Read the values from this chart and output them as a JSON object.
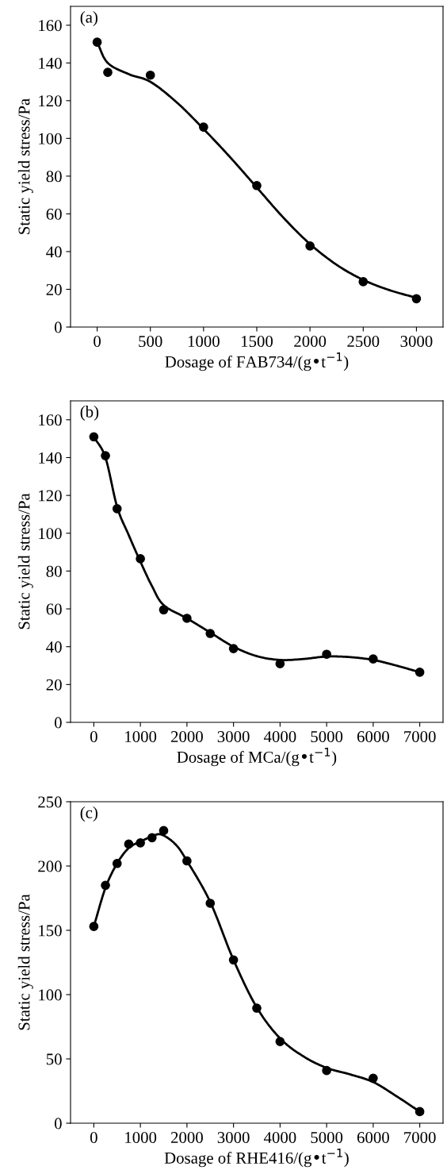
{
  "chart_data": [
    {
      "type": "scatter",
      "xlabel": "Dosage of FAB734/(g•t$^{−1}$)",
      "ylabel": "Static yield stress/Pa",
      "annotations": [
        "(a)"
      ],
      "xlim": [
        -250,
        3250
      ],
      "ylim": [
        0,
        170
      ],
      "xticks": [
        0,
        500,
        1000,
        1500,
        2000,
        2500,
        3000
      ],
      "yticks": [
        0,
        20,
        40,
        60,
        80,
        100,
        120,
        140,
        160
      ],
      "grid": false,
      "series": [
        {
          "type": "scatter",
          "color": "#000000",
          "marker": "circle",
          "x": [
            0,
            100,
            500,
            1000,
            1500,
            2000,
            2500,
            3000
          ],
          "values": [
            151,
            135,
            133.5,
            106,
            75,
            43,
            24,
            15
          ]
        },
        {
          "type": "line",
          "color": "#000000",
          "marker": "none",
          "line_style": "solid",
          "x": [
            0,
            100,
            300,
            500,
            750,
            1000,
            1250,
            1500,
            1750,
            2000,
            2250,
            2500,
            2750,
            3000
          ],
          "values": [
            151,
            140,
            134,
            130,
            119,
            105,
            90,
            74,
            58,
            44,
            33,
            25,
            19.5,
            15.5
          ]
        }
      ]
    },
    {
      "type": "scatter",
      "xlabel": "Dosage of MCa/(g•t$^{−1}$)",
      "ylabel": "Static yield stress/Pa",
      "annotations": [
        "(b)"
      ],
      "xlim": [
        -500,
        7500
      ],
      "ylim": [
        0,
        170
      ],
      "xticks": [
        0,
        1000,
        2000,
        3000,
        4000,
        5000,
        6000,
        7000
      ],
      "yticks": [
        0,
        20,
        40,
        60,
        80,
        100,
        120,
        140,
        160
      ],
      "grid": false,
      "series": [
        {
          "type": "scatter",
          "color": "#000000",
          "marker": "circle",
          "x": [
            0,
            250,
            500,
            1000,
            1500,
            2000,
            2500,
            3000,
            4000,
            5000,
            6000,
            7000
          ],
          "values": [
            151,
            141,
            113,
            86.5,
            59.5,
            55,
            47,
            39,
            31,
            36,
            33.5,
            26.5
          ]
        },
        {
          "type": "line",
          "color": "#000000",
          "marker": "none",
          "line_style": "solid",
          "x": [
            0,
            250,
            500,
            750,
            1000,
            1250,
            1500,
            2000,
            2500,
            3000,
            3500,
            4000,
            4500,
            5000,
            5500,
            6000,
            6500,
            7000
          ],
          "values": [
            151,
            140,
            114,
            99,
            85,
            72,
            62,
            55,
            47.5,
            40,
            35,
            33,
            33.5,
            34.8,
            34.5,
            33,
            30,
            26.5
          ]
        }
      ]
    },
    {
      "type": "scatter",
      "xlabel": "Dosage of RHE416/(g•t$^{−1}$)",
      "ylabel": "Static yield stress/Pa",
      "annotations": [
        "(c)"
      ],
      "xlim": [
        -500,
        7500
      ],
      "ylim": [
        0,
        250
      ],
      "xticks": [
        0,
        1000,
        2000,
        3000,
        4000,
        5000,
        6000,
        7000
      ],
      "yticks": [
        0,
        50,
        100,
        150,
        200,
        250
      ],
      "grid": false,
      "series": [
        {
          "type": "scatter",
          "color": "#000000",
          "marker": "circle",
          "x": [
            0,
            250,
            500,
            750,
            1000,
            1250,
            1500,
            2000,
            2500,
            3000,
            3500,
            4000,
            5000,
            6000,
            7000
          ],
          "values": [
            153,
            185,
            202,
            217,
            218,
            222,
            227.5,
            204,
            171,
            127,
            89.5,
            63.5,
            41,
            35,
            9
          ]
        },
        {
          "type": "line",
          "color": "#000000",
          "marker": "none",
          "line_style": "solid",
          "x": [
            0,
            250,
            500,
            750,
            1000,
            1250,
            1450,
            1750,
            2000,
            2500,
            3000,
            3500,
            4000,
            4500,
            5000,
            5500,
            6000,
            6500,
            7000
          ],
          "values": [
            153,
            183,
            202,
            214,
            219,
            223,
            224.5,
            217,
            204,
            172,
            127,
            90,
            66,
            52,
            43,
            38,
            32,
            21,
            9
          ]
        }
      ]
    }
  ]
}
